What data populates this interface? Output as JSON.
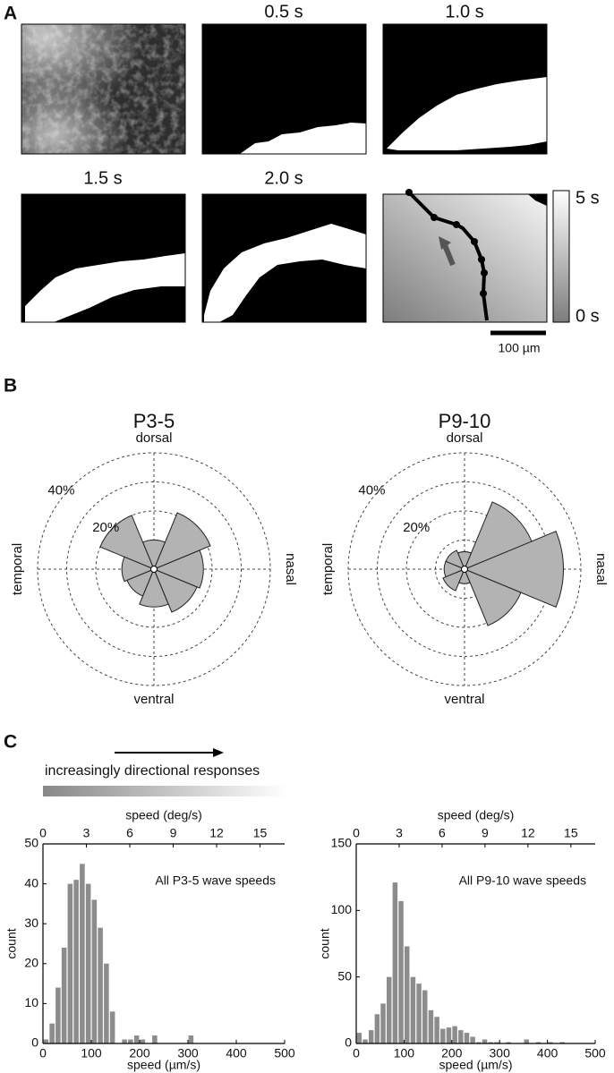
{
  "panel_labels": [
    "A",
    "B",
    "C"
  ],
  "panel_a": {
    "frame_labels": [
      "0.5 s",
      "1.0 s",
      "1.5 s",
      "2.0 s"
    ],
    "colorbar_labels": [
      "5 s",
      "0 s"
    ],
    "scale_bar": "100 µm"
  },
  "panel_c": {
    "annotation": "increasingly directional responses"
  },
  "chart_data": [
    {
      "type": "rose",
      "title": "P3-5",
      "direction_labels": {
        "top": "dorsal",
        "right": "nasal",
        "bottom": "ventral",
        "left": "temporal"
      },
      "angles": [
        0,
        45,
        90,
        135,
        180,
        225,
        270,
        315
      ],
      "sector_width": 45,
      "values": [
        17,
        21,
        10,
        20,
        11,
        10,
        13,
        16
      ],
      "rlim": [
        0,
        40
      ],
      "rgrid": [
        10,
        20,
        30,
        40
      ],
      "rticks": [
        {
          "value": 20,
          "label": "20%"
        },
        {
          "value": 40,
          "label": "40%"
        }
      ],
      "color": "#b3b3b3"
    },
    {
      "type": "rose",
      "title": "P9-10",
      "direction_labels": {
        "top": "dorsal",
        "right": "nasal",
        "bottom": "ventral",
        "left": "temporal"
      },
      "angles": [
        0,
        45,
        90,
        135,
        180,
        225,
        270,
        315
      ],
      "sector_width": 45,
      "values": [
        34,
        25,
        6,
        7,
        7,
        8,
        5,
        21
      ],
      "rlim": [
        0,
        40
      ],
      "rgrid": [
        10,
        20,
        30,
        40
      ],
      "rticks": [
        {
          "value": 20,
          "label": "20%"
        },
        {
          "value": 40,
          "label": "40%"
        }
      ],
      "color": "#b3b3b3"
    },
    {
      "type": "histogram",
      "annotation": "All P3-5 wave speeds",
      "xlabel": "speed (µm/s)",
      "ylabel": "count",
      "x2label": "speed (deg/s)",
      "bins": [
        0,
        12.5,
        25,
        37.5,
        50,
        62.5,
        75,
        87.5,
        100,
        112.5,
        125,
        137.5,
        150,
        162.5,
        175,
        187.5,
        200,
        212.5,
        225,
        237.5,
        250,
        262.5,
        275,
        287.5,
        300,
        312.5,
        325,
        337.5,
        350,
        362.5,
        375,
        387.5,
        400,
        412.5,
        425,
        437.5,
        450,
        462.5,
        475,
        487.5,
        500
      ],
      "values": [
        1,
        5,
        14,
        24,
        40,
        41,
        45,
        40,
        36,
        29,
        20,
        8,
        0,
        1,
        1,
        2,
        1,
        0,
        2,
        0,
        0,
        0,
        0,
        0,
        2,
        0,
        0,
        0,
        0,
        0,
        0,
        0,
        0,
        0,
        0,
        0,
        0,
        0,
        0,
        0
      ],
      "xlim": [
        0,
        500
      ],
      "xticks": [
        0,
        100,
        200,
        300,
        400,
        500
      ],
      "x2lim": [
        0,
        16.7
      ],
      "x2ticks": [
        0,
        3,
        6,
        9,
        12,
        15
      ],
      "ylim": [
        0,
        50
      ],
      "yticks": [
        0,
        10,
        20,
        30,
        40,
        50
      ],
      "color": "#8c8c8c"
    },
    {
      "type": "histogram",
      "annotation": "All P9-10 wave speeds",
      "xlabel": "speed (µm/s)",
      "ylabel": "count",
      "x2label": "speed (deg/s)",
      "bins": [
        0,
        12.5,
        25,
        37.5,
        50,
        62.5,
        75,
        87.5,
        100,
        112.5,
        125,
        137.5,
        150,
        162.5,
        175,
        187.5,
        200,
        212.5,
        225,
        237.5,
        250,
        262.5,
        275,
        287.5,
        300,
        312.5,
        325,
        337.5,
        350,
        362.5,
        375,
        387.5,
        400,
        412.5,
        425,
        437.5,
        450,
        462.5,
        475,
        487.5,
        500
      ],
      "values": [
        8,
        3,
        10,
        22,
        30,
        50,
        121,
        107,
        73,
        50,
        45,
        40,
        25,
        20,
        11,
        12,
        13,
        10,
        8,
        5,
        1,
        3,
        1,
        1,
        0,
        1,
        0,
        0,
        3,
        0,
        1,
        0,
        1,
        0,
        1,
        0,
        0,
        0,
        0,
        0
      ],
      "xlim": [
        0,
        500
      ],
      "xticks": [
        0,
        100,
        200,
        300,
        400,
        500
      ],
      "x2lim": [
        0,
        16.7
      ],
      "x2ticks": [
        0,
        3,
        6,
        9,
        12,
        15
      ],
      "ylim": [
        0,
        150
      ],
      "yticks": [
        0,
        50,
        100,
        150
      ],
      "color": "#8c8c8c"
    }
  ]
}
